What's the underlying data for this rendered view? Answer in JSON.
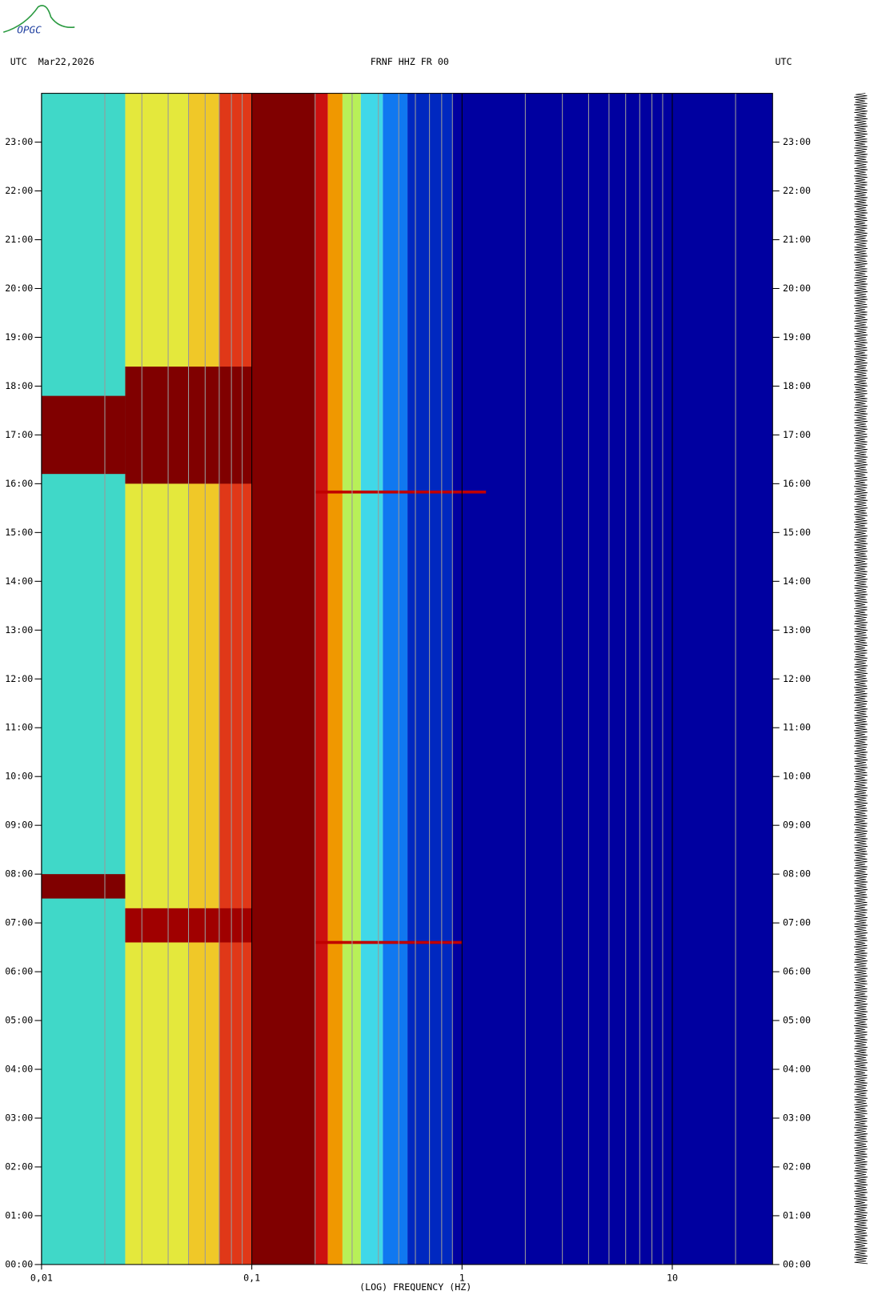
{
  "logo": "OPGC",
  "chart_data": {
    "type": "spectrogram",
    "left_header": "UTC  Mar22,2026",
    "title": "FRNF HHZ FR 00",
    "right_header": "UTC",
    "x_label": "(LOG) FREQUENCY (HZ)",
    "log_x": true,
    "xlim": [
      0.01,
      30
    ],
    "xticks": [
      {
        "value": 0.01,
        "label": "0,01"
      },
      {
        "value": 0.1,
        "label": "0,1"
      },
      1,
      10
    ],
    "x_minor_grid": [
      0.02,
      0.03,
      0.04,
      0.05,
      0.06,
      0.07,
      0.08,
      0.09,
      0.2,
      0.3,
      0.4,
      0.5,
      0.6,
      0.7,
      0.8,
      0.9,
      2,
      3,
      4,
      5,
      6,
      7,
      8,
      9,
      20
    ],
    "ylim": [
      0,
      24
    ],
    "yticks": [
      {
        "value": 0,
        "label": "00:00"
      },
      {
        "value": 1,
        "label": "01:00"
      },
      {
        "value": 2,
        "label": "02:00"
      },
      {
        "value": 3,
        "label": "03:00"
      },
      {
        "value": 4,
        "label": "04:00"
      },
      {
        "value": 5,
        "label": "05:00"
      },
      {
        "value": 6,
        "label": "06:00"
      },
      {
        "value": 7,
        "label": "07:00"
      },
      {
        "value": 8,
        "label": "08:00"
      },
      {
        "value": 9,
        "label": "09:00"
      },
      {
        "value": 10,
        "label": "10:00"
      },
      {
        "value": 11,
        "label": "11:00"
      },
      {
        "value": 12,
        "label": "12:00"
      },
      {
        "value": 13,
        "label": "13:00"
      },
      {
        "value": 14,
        "label": "14:00"
      },
      {
        "value": 15,
        "label": "15:00"
      },
      {
        "value": 16,
        "label": "16:00"
      },
      {
        "value": 17,
        "label": "17:00"
      },
      {
        "value": 18,
        "label": "18:00"
      },
      {
        "value": 19,
        "label": "19:00"
      },
      {
        "value": 20,
        "label": "20:00"
      },
      {
        "value": 21,
        "label": "21:00"
      },
      {
        "value": 22,
        "label": "22:00"
      },
      {
        "value": 23,
        "label": "23:00"
      }
    ],
    "bands": [
      {
        "from": 0.01,
        "to": 0.025,
        "color": "#40d8c8"
      },
      {
        "from": 0.025,
        "to": 0.05,
        "color": "#e4e83c"
      },
      {
        "from": 0.05,
        "to": 0.07,
        "color": "#f0c828"
      },
      {
        "from": 0.07,
        "to": 0.1,
        "color": "#e03818"
      },
      {
        "from": 0.1,
        "to": 0.2,
        "color": "#800000"
      },
      {
        "from": 0.2,
        "to": 0.23,
        "color": "#cc1010"
      },
      {
        "from": 0.23,
        "to": 0.27,
        "color": "#f09800"
      },
      {
        "from": 0.27,
        "to": 0.33,
        "color": "#b8f058"
      },
      {
        "from": 0.33,
        "to": 0.42,
        "color": "#40d8e8"
      },
      {
        "from": 0.42,
        "to": 0.55,
        "color": "#1078f0"
      },
      {
        "from": 0.55,
        "to": 0.9,
        "color": "#0028c0"
      },
      {
        "from": 0.9,
        "to": 30,
        "color": "#0000a0"
      }
    ],
    "events": [
      {
        "f": [
          0.01,
          0.025
        ],
        "t": [
          16.2,
          17.8
        ],
        "color": "#800000"
      },
      {
        "f": [
          0.025,
          0.1
        ],
        "t": [
          16.0,
          18.4
        ],
        "color": "#800000"
      },
      {
        "f": [
          0.01,
          0.025
        ],
        "t": [
          7.5,
          8.0
        ],
        "color": "#800000"
      },
      {
        "f": [
          0.025,
          0.1
        ],
        "t": [
          6.6,
          7.3
        ],
        "color": "#a00000"
      },
      {
        "f": [
          0.2,
          1.3
        ],
        "t": [
          15.8,
          15.86
        ],
        "color": "#c00000"
      },
      {
        "f": [
          0.2,
          1.0
        ],
        "t": [
          6.57,
          6.63
        ],
        "color": "#c00000"
      }
    ]
  }
}
